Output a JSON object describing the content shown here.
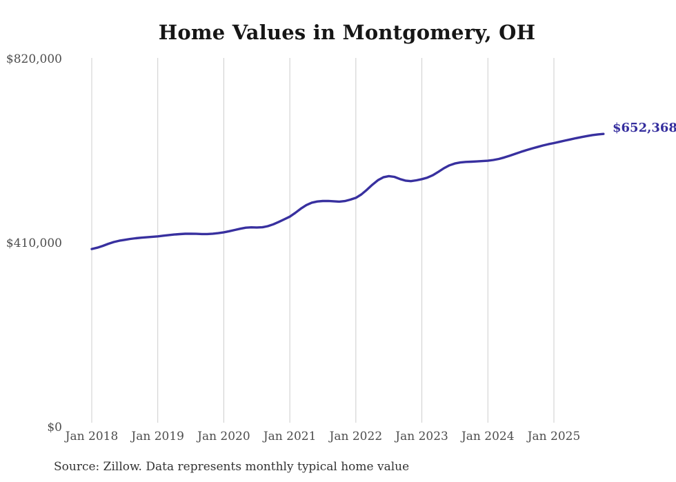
{
  "page": {
    "title": "Home Values in Montgomery, OH",
    "source_note": "Source: Zillow. Data represents monthly typical home value",
    "latest_value_label": "$652,368"
  },
  "colors": {
    "line": "#38309f",
    "value_label": "#352e9e",
    "grid": "#cccccc",
    "axis_text": "#4d4d4d",
    "title_text": "#161616",
    "source_text": "#333333",
    "background": "#ffffff"
  },
  "chart_data": {
    "type": "line",
    "title": "Home Values in Montgomery, OH",
    "xlabel": "",
    "ylabel": "",
    "x_start": "Jan 2018",
    "x_end": "Oct 2025",
    "x_interval": "monthly",
    "x_tick_labels": [
      "Jan 2018",
      "Jan 2019",
      "Jan 2020",
      "Jan 2021",
      "Jan 2022",
      "Jan 2023",
      "Jan 2024",
      "Jan 2025"
    ],
    "y_tick_labels": [
      "$820,000",
      "$410,000",
      "$0"
    ],
    "y_tick_values": [
      820000,
      410000,
      0
    ],
    "ylim": [
      0,
      820000
    ],
    "grid": "vertical year gridlines only",
    "legend": "none",
    "final_value": 652368,
    "series": [
      {
        "name": "Typical home value (USD)",
        "values": [
          396000,
          399000,
          403000,
          407500,
          411500,
          414500,
          416500,
          418500,
          420000,
          421200,
          422200,
          423200,
          424200,
          425600,
          427000,
          428200,
          429200,
          429900,
          430100,
          429800,
          429400,
          429400,
          430100,
          431400,
          433200,
          435600,
          438400,
          441200,
          443400,
          444300,
          443900,
          444400,
          446800,
          451000,
          456400,
          462200,
          468000,
          476500,
          485800,
          493800,
          499200,
          501800,
          502900,
          503100,
          502300,
          501500,
          502700,
          505900,
          510000,
          517500,
          527800,
          539200,
          549200,
          555800,
          558400,
          556600,
          551900,
          548300,
          547100,
          548900,
          551600,
          555000,
          560400,
          567800,
          575800,
          582300,
          586400,
          588700,
          589900,
          590400,
          591000,
          591800,
          592600,
          594200,
          596600,
          600000,
          604000,
          608100,
          612200,
          616100,
          619700,
          623200,
          626500,
          629400,
          631900,
          634700,
          637400,
          640100,
          642800,
          645300,
          647600,
          649700,
          651300,
          652368
        ]
      }
    ]
  }
}
